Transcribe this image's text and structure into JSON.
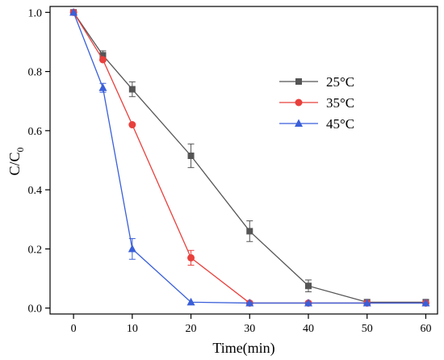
{
  "chart_data": {
    "type": "line",
    "xlabel": "Time(min)",
    "ylabel": "C/C",
    "ylabel_subscript": "0",
    "xlim": [
      -4,
      62
    ],
    "ylim": [
      -0.02,
      1.02
    ],
    "xticks": [
      0,
      10,
      20,
      30,
      40,
      50,
      60
    ],
    "yticks": [
      0.0,
      0.2,
      0.4,
      0.6,
      0.8,
      1.0
    ],
    "xtick_labels": [
      "0",
      "10",
      "20",
      "30",
      "40",
      "50",
      "60"
    ],
    "ytick_labels": [
      "0.0",
      "0.2",
      "0.4",
      "0.6",
      "0.8",
      "1.0"
    ],
    "grid": false,
    "legend_position": "upper-right",
    "series": [
      {
        "name": "25°C",
        "color": "#555555",
        "marker": "square",
        "x": [
          0,
          5,
          10,
          20,
          30,
          40,
          50,
          60
        ],
        "y": [
          1.0,
          0.855,
          0.74,
          0.515,
          0.26,
          0.075,
          0.02,
          0.02
        ],
        "err": [
          0.005,
          0.015,
          0.025,
          0.04,
          0.035,
          0.02,
          0.005,
          0.005
        ]
      },
      {
        "name": "35°C",
        "color": "#e8403c",
        "marker": "circle",
        "x": [
          0,
          5,
          10,
          20,
          30,
          40,
          50,
          60
        ],
        "y": [
          1.0,
          0.84,
          0.62,
          0.17,
          0.017,
          0.017,
          0.017,
          0.017
        ],
        "err": [
          0.005,
          0.005,
          0.005,
          0.025,
          0.004,
          0.004,
          0.004,
          0.004
        ]
      },
      {
        "name": "45°C",
        "color": "#3a5fd9",
        "marker": "triangle",
        "x": [
          0,
          5,
          10,
          20,
          30,
          40,
          50,
          60
        ],
        "y": [
          1.0,
          0.745,
          0.2,
          0.02,
          0.017,
          0.017,
          0.017,
          0.017
        ],
        "err": [
          0.005,
          0.015,
          0.035,
          0.003,
          0.003,
          0.003,
          0.003,
          0.003
        ]
      }
    ]
  }
}
